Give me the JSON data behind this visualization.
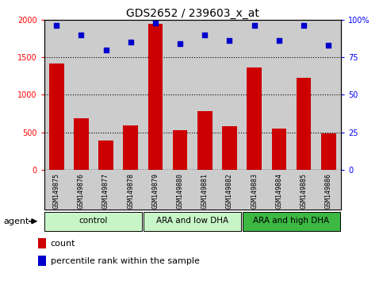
{
  "title": "GDS2652 / 239603_x_at",
  "samples": [
    "GSM149875",
    "GSM149876",
    "GSM149877",
    "GSM149878",
    "GSM149879",
    "GSM149880",
    "GSM149881",
    "GSM149882",
    "GSM149883",
    "GSM149884",
    "GSM149885",
    "GSM149886"
  ],
  "counts": [
    1420,
    690,
    390,
    590,
    1950,
    530,
    780,
    580,
    1360,
    550,
    1230,
    490
  ],
  "percentiles": [
    96,
    90,
    80,
    85,
    98,
    84,
    90,
    86,
    96,
    86,
    96,
    83
  ],
  "group_info": [
    {
      "label": "control",
      "start": 0,
      "end": 4,
      "color": "#C8F5C8"
    },
    {
      "label": "ARA and low DHA",
      "start": 4,
      "end": 8,
      "color": "#C8F5C8"
    },
    {
      "label": "ARA and high DHA",
      "start": 8,
      "end": 12,
      "color": "#3CB843"
    }
  ],
  "bar_color": "#CC0000",
  "scatter_color": "#0000CC",
  "ylim_left": [
    0,
    2000
  ],
  "ylim_right": [
    0,
    100
  ],
  "yticks_left": [
    0,
    500,
    1000,
    1500,
    2000
  ],
  "yticks_right": [
    0,
    25,
    50,
    75,
    100
  ],
  "agent_label": "agent",
  "legend_count_label": "count",
  "legend_percentile_label": "percentile rank within the sample",
  "plot_bg_color": "#CCCCCC",
  "title_fontsize": 10,
  "tick_fontsize": 7,
  "label_fontsize": 7.5
}
